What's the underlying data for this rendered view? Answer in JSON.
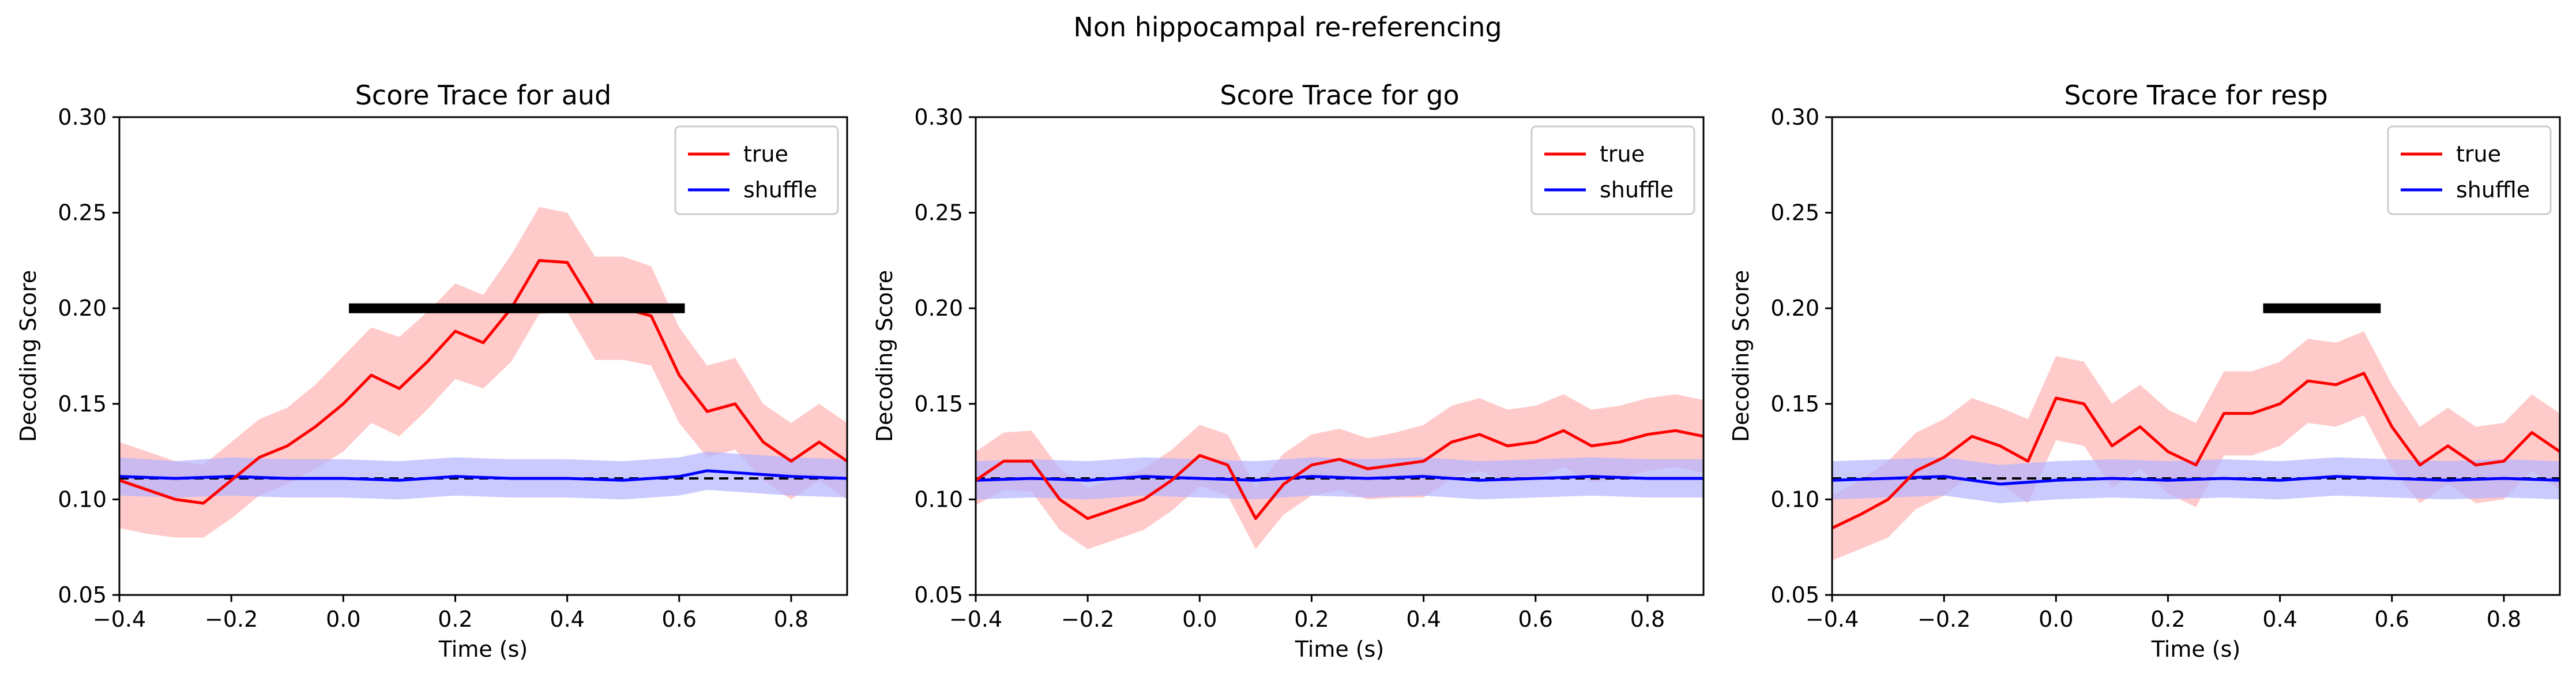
{
  "suptitle": "Non hippocampal re-referencing",
  "chart_data": [
    {
      "type": "line",
      "title": "Score Trace for aud",
      "xlabel": "Time (s)",
      "ylabel": "Decoding Score",
      "xlim": [
        -0.4,
        0.9
      ],
      "ylim": [
        0.05,
        0.3
      ],
      "xticks": [
        -0.4,
        -0.2,
        0.0,
        0.2,
        0.4,
        0.6,
        0.8
      ],
      "xtick_labels": [
        "−0.4",
        "−0.2",
        "0.0",
        "0.2",
        "0.4",
        "0.6",
        "0.8"
      ],
      "yticks": [
        0.05,
        0.1,
        0.15,
        0.2,
        0.25,
        0.3
      ],
      "ytick_labels": [
        "0.05",
        "0.10",
        "0.15",
        "0.20",
        "0.25",
        "0.30"
      ],
      "grid": false,
      "legend_placement": "top-right",
      "chance_level": 0.111,
      "significance_bars": [
        {
          "x_start": 0.01,
          "x_end": 0.61,
          "y": 0.2
        }
      ],
      "series": [
        {
          "name": "true",
          "color": "#ff0000",
          "band_color": "#ffb3b3",
          "x": [
            -0.4,
            -0.35,
            -0.3,
            -0.25,
            -0.2,
            -0.15,
            -0.1,
            -0.05,
            0.0,
            0.05,
            0.1,
            0.15,
            0.2,
            0.25,
            0.3,
            0.35,
            0.4,
            0.45,
            0.5,
            0.55,
            0.6,
            0.65,
            0.7,
            0.75,
            0.8,
            0.85,
            0.9
          ],
          "values": [
            0.11,
            0.105,
            0.1,
            0.098,
            0.11,
            0.122,
            0.128,
            0.138,
            0.15,
            0.165,
            0.158,
            0.172,
            0.188,
            0.182,
            0.2,
            0.225,
            0.224,
            0.2,
            0.2,
            0.196,
            0.165,
            0.146,
            0.15,
            0.13,
            0.12,
            0.13,
            0.12
          ],
          "upper": [
            0.13,
            0.125,
            0.12,
            0.118,
            0.13,
            0.142,
            0.148,
            0.16,
            0.175,
            0.19,
            0.185,
            0.198,
            0.213,
            0.207,
            0.228,
            0.253,
            0.25,
            0.227,
            0.227,
            0.222,
            0.19,
            0.17,
            0.174,
            0.15,
            0.14,
            0.15,
            0.14
          ],
          "lower": [
            0.085,
            0.082,
            0.08,
            0.08,
            0.09,
            0.102,
            0.108,
            0.116,
            0.125,
            0.14,
            0.133,
            0.147,
            0.163,
            0.158,
            0.172,
            0.197,
            0.198,
            0.173,
            0.173,
            0.17,
            0.14,
            0.122,
            0.126,
            0.11,
            0.1,
            0.11,
            0.1
          ]
        },
        {
          "name": "shuffle",
          "color": "#0000ff",
          "band_color": "#b3b3ff",
          "x": [
            -0.4,
            -0.3,
            -0.2,
            -0.1,
            0.0,
            0.1,
            0.2,
            0.3,
            0.4,
            0.5,
            0.6,
            0.65,
            0.7,
            0.8,
            0.9
          ],
          "values": [
            0.112,
            0.111,
            0.112,
            0.111,
            0.111,
            0.11,
            0.112,
            0.111,
            0.111,
            0.11,
            0.112,
            0.115,
            0.114,
            0.112,
            0.111
          ],
          "upper": [
            0.122,
            0.12,
            0.122,
            0.121,
            0.121,
            0.12,
            0.122,
            0.121,
            0.121,
            0.12,
            0.122,
            0.125,
            0.124,
            0.122,
            0.121
          ],
          "lower": [
            0.102,
            0.101,
            0.102,
            0.101,
            0.101,
            0.1,
            0.102,
            0.101,
            0.101,
            0.1,
            0.102,
            0.105,
            0.104,
            0.102,
            0.101
          ]
        }
      ]
    },
    {
      "type": "line",
      "title": "Score Trace for go",
      "xlabel": "Time (s)",
      "ylabel": "Decoding Score",
      "xlim": [
        -0.4,
        0.9
      ],
      "ylim": [
        0.05,
        0.3
      ],
      "xticks": [
        -0.4,
        -0.2,
        0.0,
        0.2,
        0.4,
        0.6,
        0.8
      ],
      "xtick_labels": [
        "−0.4",
        "−0.2",
        "0.0",
        "0.2",
        "0.4",
        "0.6",
        "0.8"
      ],
      "yticks": [
        0.05,
        0.1,
        0.15,
        0.2,
        0.25,
        0.3
      ],
      "ytick_labels": [
        "0.05",
        "0.10",
        "0.15",
        "0.20",
        "0.25",
        "0.30"
      ],
      "grid": false,
      "legend_placement": "top-right",
      "chance_level": 0.111,
      "significance_bars": [],
      "series": [
        {
          "name": "true",
          "color": "#ff0000",
          "band_color": "#ffb3b3",
          "x": [
            -0.4,
            -0.35,
            -0.3,
            -0.25,
            -0.2,
            -0.15,
            -0.1,
            -0.05,
            0.0,
            0.05,
            0.1,
            0.15,
            0.2,
            0.25,
            0.3,
            0.35,
            0.4,
            0.45,
            0.5,
            0.55,
            0.6,
            0.65,
            0.7,
            0.75,
            0.8,
            0.85,
            0.9
          ],
          "values": [
            0.11,
            0.12,
            0.12,
            0.1,
            0.09,
            0.095,
            0.1,
            0.11,
            0.123,
            0.118,
            0.09,
            0.108,
            0.118,
            0.121,
            0.116,
            0.118,
            0.12,
            0.13,
            0.134,
            0.128,
            0.13,
            0.136,
            0.128,
            0.13,
            0.134,
            0.136,
            0.133
          ],
          "upper": [
            0.125,
            0.135,
            0.136,
            0.116,
            0.106,
            0.111,
            0.116,
            0.126,
            0.139,
            0.134,
            0.106,
            0.124,
            0.134,
            0.137,
            0.132,
            0.135,
            0.139,
            0.149,
            0.153,
            0.147,
            0.149,
            0.155,
            0.147,
            0.149,
            0.153,
            0.155,
            0.152
          ],
          "lower": [
            0.097,
            0.105,
            0.104,
            0.084,
            0.074,
            0.079,
            0.084,
            0.094,
            0.107,
            0.102,
            0.074,
            0.092,
            0.102,
            0.105,
            0.1,
            0.101,
            0.101,
            0.111,
            0.115,
            0.109,
            0.111,
            0.117,
            0.109,
            0.111,
            0.115,
            0.117,
            0.114
          ]
        },
        {
          "name": "shuffle",
          "color": "#0000ff",
          "band_color": "#b3b3ff",
          "x": [
            -0.4,
            -0.3,
            -0.2,
            -0.1,
            0.0,
            0.1,
            0.2,
            0.3,
            0.4,
            0.5,
            0.6,
            0.7,
            0.8,
            0.9
          ],
          "values": [
            0.11,
            0.111,
            0.11,
            0.112,
            0.111,
            0.11,
            0.112,
            0.111,
            0.112,
            0.11,
            0.111,
            0.112,
            0.111,
            0.111
          ],
          "upper": [
            0.12,
            0.121,
            0.12,
            0.122,
            0.121,
            0.12,
            0.122,
            0.121,
            0.122,
            0.12,
            0.121,
            0.122,
            0.121,
            0.121
          ],
          "lower": [
            0.1,
            0.101,
            0.1,
            0.102,
            0.101,
            0.1,
            0.102,
            0.101,
            0.102,
            0.1,
            0.101,
            0.102,
            0.101,
            0.101
          ]
        }
      ]
    },
    {
      "type": "line",
      "title": "Score Trace for resp",
      "xlabel": "Time (s)",
      "ylabel": "Decoding Score",
      "xlim": [
        -0.4,
        0.9
      ],
      "ylim": [
        0.05,
        0.3
      ],
      "xticks": [
        -0.4,
        -0.2,
        0.0,
        0.2,
        0.4,
        0.6,
        0.8
      ],
      "xtick_labels": [
        "−0.4",
        "−0.2",
        "0.0",
        "0.2",
        "0.4",
        "0.6",
        "0.8"
      ],
      "yticks": [
        0.05,
        0.1,
        0.15,
        0.2,
        0.25,
        0.3
      ],
      "ytick_labels": [
        "0.05",
        "0.10",
        "0.15",
        "0.20",
        "0.25",
        "0.30"
      ],
      "grid": false,
      "legend_placement": "top-right",
      "chance_level": 0.111,
      "significance_bars": [
        {
          "x_start": 0.37,
          "x_end": 0.58,
          "y": 0.2
        }
      ],
      "series": [
        {
          "name": "true",
          "color": "#ff0000",
          "band_color": "#ffb3b3",
          "x": [
            -0.4,
            -0.35,
            -0.3,
            -0.25,
            -0.2,
            -0.15,
            -0.1,
            -0.05,
            0.0,
            0.05,
            0.1,
            0.15,
            0.2,
            0.25,
            0.3,
            0.35,
            0.4,
            0.45,
            0.5,
            0.55,
            0.6,
            0.65,
            0.7,
            0.75,
            0.8,
            0.85,
            0.9
          ],
          "values": [
            0.085,
            0.092,
            0.1,
            0.115,
            0.122,
            0.133,
            0.128,
            0.12,
            0.153,
            0.15,
            0.128,
            0.138,
            0.125,
            0.118,
            0.145,
            0.145,
            0.15,
            0.162,
            0.16,
            0.166,
            0.138,
            0.118,
            0.128,
            0.118,
            0.12,
            0.135,
            0.125
          ],
          "upper": [
            0.102,
            0.11,
            0.12,
            0.135,
            0.142,
            0.153,
            0.148,
            0.142,
            0.175,
            0.172,
            0.15,
            0.16,
            0.147,
            0.14,
            0.167,
            0.167,
            0.172,
            0.184,
            0.182,
            0.188,
            0.16,
            0.138,
            0.148,
            0.138,
            0.14,
            0.155,
            0.145
          ],
          "lower": [
            0.068,
            0.074,
            0.08,
            0.095,
            0.102,
            0.113,
            0.108,
            0.098,
            0.131,
            0.128,
            0.106,
            0.116,
            0.103,
            0.096,
            0.123,
            0.123,
            0.128,
            0.14,
            0.138,
            0.144,
            0.116,
            0.098,
            0.108,
            0.098,
            0.1,
            0.115,
            0.105
          ]
        },
        {
          "name": "shuffle",
          "color": "#0000ff",
          "band_color": "#b3b3ff",
          "x": [
            -0.4,
            -0.3,
            -0.2,
            -0.1,
            0.0,
            0.1,
            0.2,
            0.3,
            0.4,
            0.5,
            0.6,
            0.7,
            0.8,
            0.9
          ],
          "values": [
            0.11,
            0.111,
            0.112,
            0.108,
            0.11,
            0.111,
            0.11,
            0.111,
            0.11,
            0.112,
            0.111,
            0.11,
            0.111,
            0.11
          ],
          "upper": [
            0.12,
            0.121,
            0.122,
            0.118,
            0.12,
            0.121,
            0.12,
            0.121,
            0.12,
            0.122,
            0.121,
            0.12,
            0.121,
            0.12
          ],
          "lower": [
            0.1,
            0.101,
            0.102,
            0.098,
            0.1,
            0.101,
            0.1,
            0.101,
            0.1,
            0.102,
            0.101,
            0.1,
            0.101,
            0.1
          ]
        }
      ]
    }
  ]
}
